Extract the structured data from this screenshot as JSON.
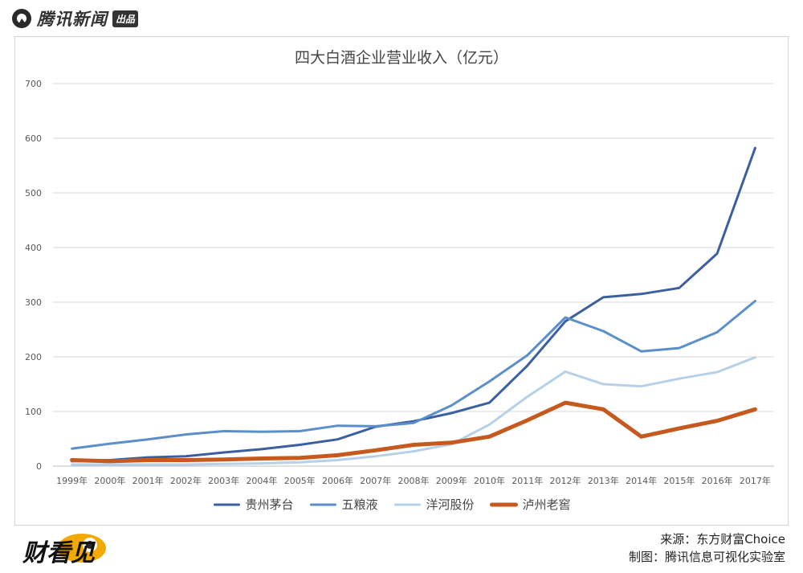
{
  "header": {
    "brand_name": "腾讯新闻",
    "brand_tag": "出品"
  },
  "footer": {
    "logo_text": "财看见",
    "source": "来源：东方财富Choice",
    "made_by": "制图：腾讯信息可视化实验室"
  },
  "colors": {
    "maotai": "#3b5fa0",
    "wuliangye": "#5b8fc9",
    "yanghe": "#b6d0e8",
    "luzhou": "#c65a1e",
    "grid": "#d9d9d9",
    "axis_text": "#595959"
  },
  "chart_data": {
    "type": "line",
    "title": "四大白酒企业营业收入（亿元）",
    "xlabel": "",
    "ylabel": "",
    "ylim": [
      0,
      700
    ],
    "yticks": [
      "0",
      "100",
      "200",
      "300",
      "400",
      "500",
      "600",
      "700"
    ],
    "categories": [
      "1999年",
      "2000年",
      "2001年",
      "2002年",
      "2003年",
      "2004年",
      "2005年",
      "2006年",
      "2007年",
      "2008年",
      "2009年",
      "2010年",
      "2011年",
      "2012年",
      "2013年",
      "2014年",
      "2015年",
      "2016年",
      "2017年"
    ],
    "grid": true,
    "legend_position": "bottom",
    "series": [
      {
        "name": "贵州茅台",
        "color": "#3b5fa0",
        "width": 3,
        "values": [
          9,
          11,
          16,
          18,
          25,
          31,
          39,
          49,
          72,
          82,
          97,
          116,
          184,
          265,
          309,
          315,
          326,
          389,
          582
        ]
      },
      {
        "name": "五粮液",
        "color": "#5b8fc9",
        "width": 3,
        "values": [
          32,
          41,
          49,
          58,
          64,
          63,
          64,
          74,
          73,
          79,
          111,
          155,
          203,
          272,
          247,
          210,
          216,
          245,
          302
        ]
      },
      {
        "name": "洋河股份",
        "color": "#b6d0e8",
        "width": 3,
        "values": [
          3,
          3,
          3,
          3,
          4,
          5,
          7,
          11,
          18,
          27,
          40,
          76,
          127,
          173,
          150,
          146,
          160,
          172,
          199
        ]
      },
      {
        "name": "泸州老窖",
        "color": "#c65a1e",
        "width": 5,
        "values": [
          11,
          9,
          11,
          11,
          12,
          14,
          15,
          20,
          29,
          39,
          43,
          54,
          84,
          116,
          104,
          54,
          69,
          83,
          104
        ]
      }
    ]
  }
}
